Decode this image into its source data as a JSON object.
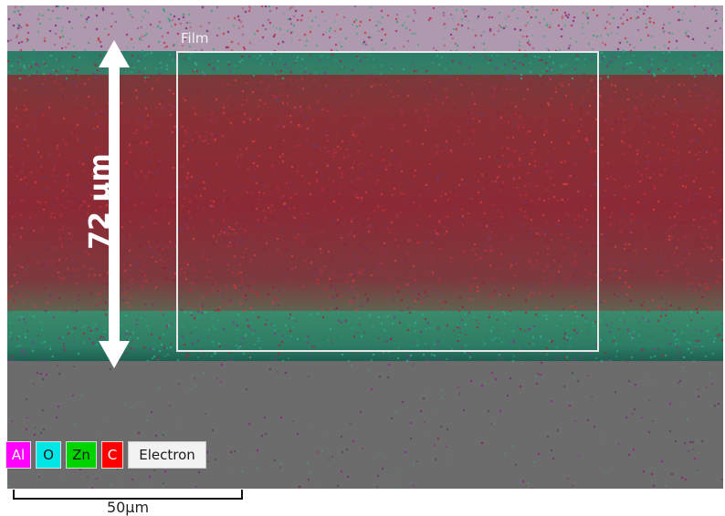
{
  "map": {
    "roi_label": "Film",
    "thickness_label": "72 μm",
    "colors": {
      "green_layer": "#2f8468",
      "film_red": "#8b2a35",
      "substrate_gray": "#6c6c6c",
      "roi_border": "#e8e8e8"
    }
  },
  "legend": {
    "items": [
      {
        "label": "Al",
        "color": "#ff00ff"
      },
      {
        "label": "O",
        "color": "#00e6e6"
      },
      {
        "label": "Zn",
        "color": "#00d400"
      },
      {
        "label": "C",
        "color": "#ff0000"
      },
      {
        "label": "Electron",
        "color": "#f2f2f2"
      }
    ]
  },
  "scalebar": {
    "label": "50μm"
  }
}
